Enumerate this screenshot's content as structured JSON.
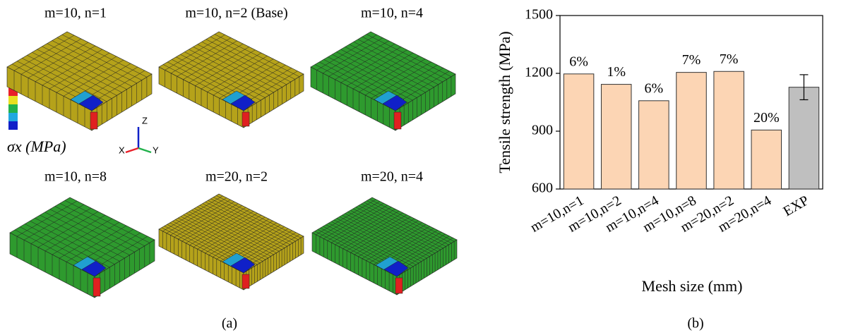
{
  "panel_a": {
    "titles": [
      "m=10, n=1",
      "m=10, n=2 (Base)",
      "m=10, n=4",
      "m=10, n=8",
      "m=20, n=2",
      "m=20, n=4"
    ],
    "legend_label": "σx (MPa)",
    "axes": [
      "Z",
      "X",
      "Y"
    ],
    "caption": "(a)"
  },
  "chart_data": {
    "type": "bar",
    "x_label": "Mesh size (mm)",
    "y_label": "Tensile strength (MPa)",
    "caption": "(b)",
    "categories": [
      "m=10,n=1",
      "m=10,n=2",
      "m=10,n=4",
      "m=10,n=8",
      "m=20,n=2",
      "m=20,n=4",
      "EXP"
    ],
    "values": [
      1197,
      1143,
      1058,
      1205,
      1210,
      906,
      1128
    ],
    "value_labels": [
      "6%",
      "1%",
      "6%",
      "7%",
      "7%",
      "20%",
      null
    ],
    "errors": [
      null,
      null,
      null,
      null,
      null,
      null,
      65
    ],
    "colors": [
      "#fcd5b4",
      "#fcd5b4",
      "#fcd5b4",
      "#fcd5b4",
      "#fcd5b4",
      "#fcd5b4",
      "#bfbfbf"
    ],
    "ylim": [
      600,
      1500
    ],
    "yticks": [
      600,
      900,
      1200,
      1500
    ]
  }
}
